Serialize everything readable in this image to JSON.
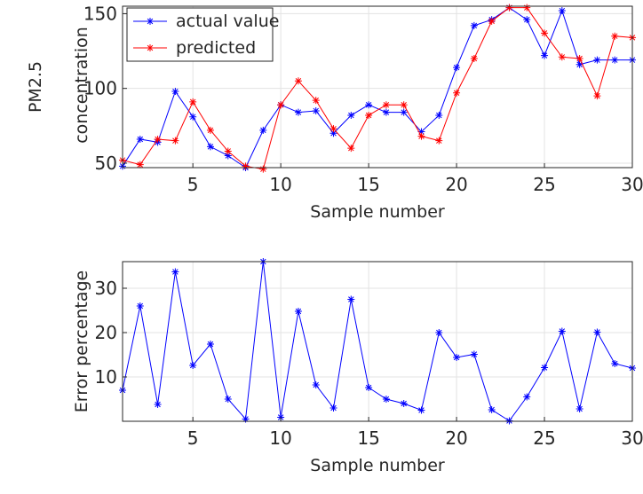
{
  "chart_data": [
    {
      "type": "line",
      "xlabel": "Sample number",
      "ylabel_lines": [
        "PM2.5",
        "concentration"
      ],
      "xlim": [
        1,
        30
      ],
      "ylim": [
        47,
        155
      ],
      "xticks": [
        5,
        10,
        15,
        20,
        25,
        30
      ],
      "yticks": [
        50,
        100,
        150
      ],
      "grid": true,
      "legend": "top-left",
      "x": [
        1,
        2,
        3,
        4,
        5,
        6,
        7,
        8,
        9,
        10,
        11,
        12,
        13,
        14,
        15,
        16,
        17,
        18,
        19,
        20,
        21,
        22,
        23,
        24,
        25,
        26,
        27,
        28,
        29,
        30
      ],
      "series": [
        {
          "name": "actual value",
          "color": "#0000ff",
          "marker": "star",
          "values": [
            48,
            66,
            64,
            98,
            81,
            61,
            55,
            47,
            72,
            89,
            84,
            85,
            70,
            82,
            89,
            84,
            84,
            71,
            82,
            114,
            142,
            146,
            154,
            146,
            122,
            152,
            116,
            119,
            119,
            119
          ]
        },
        {
          "name": "predicted",
          "color": "#ff0000",
          "marker": "star",
          "values": [
            52,
            49,
            66,
            65,
            91,
            72,
            58,
            48,
            46,
            89,
            105,
            92,
            73,
            60,
            82,
            89,
            89,
            68,
            65,
            97,
            120,
            145,
            154,
            154,
            137,
            121,
            120,
            95,
            135,
            134
          ]
        }
      ]
    },
    {
      "type": "line",
      "xlabel": "Sample number",
      "ylabel": "Error percentage",
      "xlim": [
        1,
        30
      ],
      "ylim": [
        0,
        36
      ],
      "xticks": [
        5,
        10,
        15,
        20,
        25,
        30
      ],
      "yticks": [
        10,
        20,
        30
      ],
      "grid": true,
      "x": [
        1,
        2,
        3,
        4,
        5,
        6,
        7,
        8,
        9,
        10,
        11,
        12,
        13,
        14,
        15,
        16,
        17,
        18,
        19,
        20,
        21,
        22,
        23,
        24,
        25,
        26,
        27,
        28,
        29,
        30
      ],
      "series": [
        {
          "color": "#0000ff",
          "marker": "star",
          "values": [
            7,
            26,
            3.8,
            33.7,
            12.6,
            17.4,
            5,
            0.5,
            36,
            0.9,
            24.8,
            8.2,
            3,
            27.5,
            7.6,
            5,
            4,
            2.5,
            20,
            14.4,
            15.1,
            2.6,
            0.1,
            5.5,
            12.1,
            20.3,
            2.8,
            20.1,
            13,
            12
          ]
        }
      ]
    }
  ]
}
